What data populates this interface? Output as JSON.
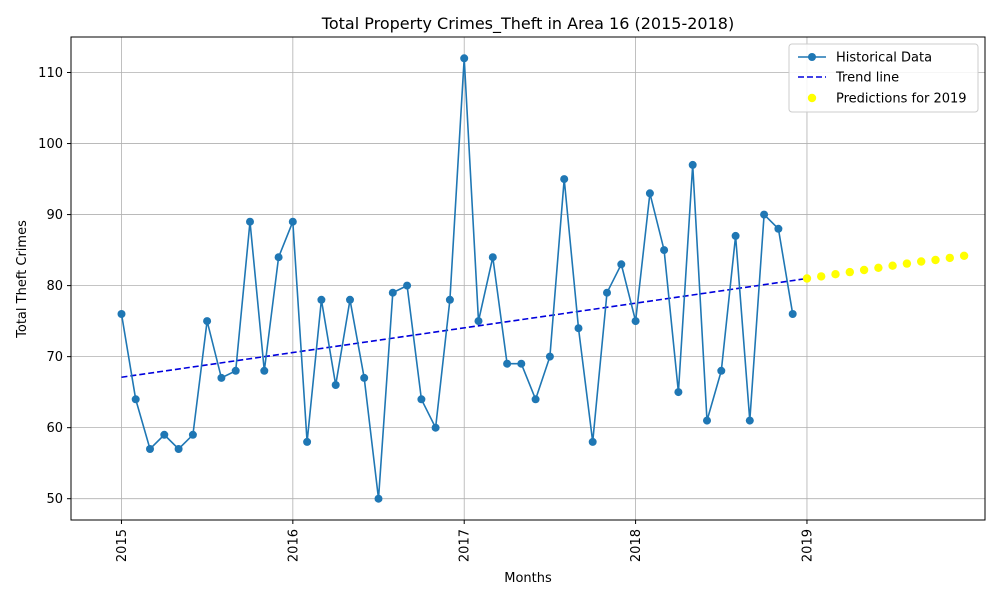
{
  "chart_data": {
    "type": "line",
    "title": "Total Property Crimes_Theft in Area 16 (2015-2018)",
    "xlabel": "Months",
    "ylabel": "Total Theft Crimes",
    "xlim": [
      "2014-09-15",
      "2020-01-15"
    ],
    "ylim": [
      47,
      115
    ],
    "x_tick_labels": [
      "2015",
      "2016",
      "2017",
      "2018",
      "2019"
    ],
    "y_ticks": [
      50,
      60,
      70,
      80,
      90,
      100,
      110
    ],
    "grid": true,
    "legend_position": "top-right",
    "colors": {
      "historical": "#1f77b4",
      "trend": "#0000dd",
      "prediction": "#ffff00"
    },
    "series": [
      {
        "name": "Historical Data",
        "style": "line-marker",
        "start": "2015-01",
        "values": [
          76,
          64,
          57,
          59,
          57,
          59,
          75,
          67,
          68,
          89,
          68,
          84,
          89,
          58,
          78,
          66,
          78,
          67,
          50,
          79,
          80,
          64,
          60,
          78,
          112,
          75,
          84,
          69,
          69,
          64,
          70,
          95,
          74,
          58,
          79,
          83,
          75,
          93,
          85,
          65,
          97,
          61,
          68,
          87,
          61,
          90,
          88,
          76
        ]
      },
      {
        "name": "Trend line",
        "style": "dashed-line",
        "x": [
          "2015-01",
          "2019-01"
        ],
        "values": [
          67.1,
          81.0
        ]
      },
      {
        "name": "Predictions for 2019",
        "style": "scatter",
        "start": "2019-01",
        "values": [
          81.0,
          81.3,
          81.6,
          81.9,
          82.2,
          82.5,
          82.8,
          83.1,
          83.4,
          83.6,
          83.9,
          84.2
        ]
      }
    ]
  }
}
